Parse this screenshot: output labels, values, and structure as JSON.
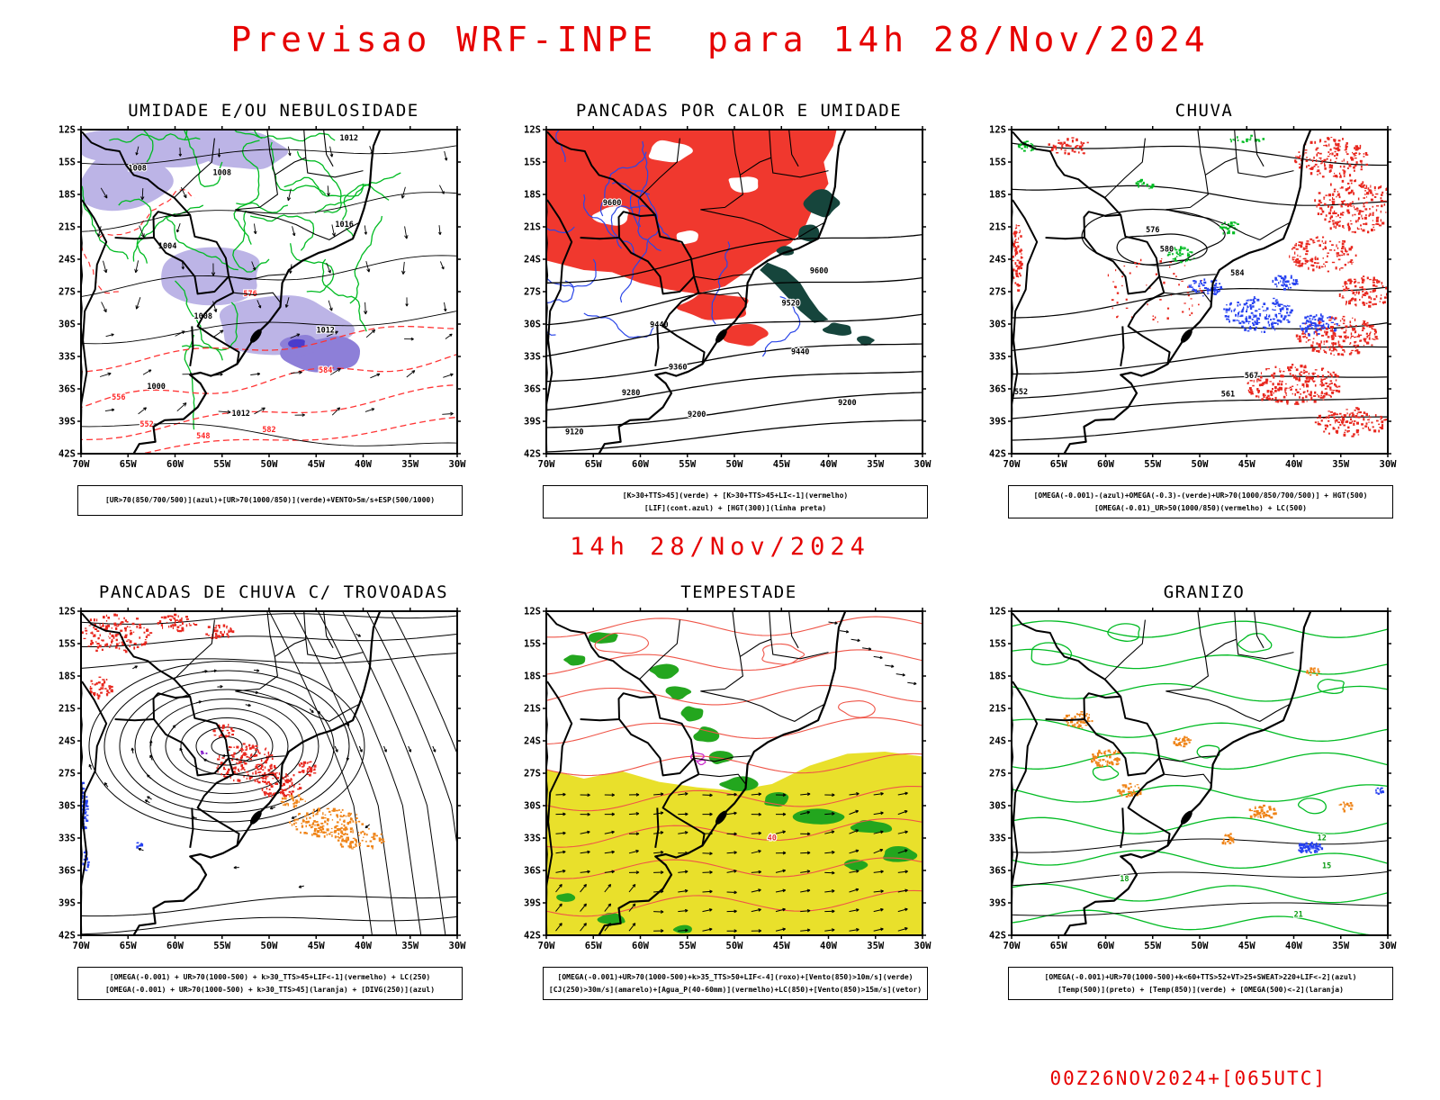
{
  "title": "Previsao WRF-INPE  para 14h 28/Nov/2024",
  "mid_caption": "14h 28/Nov/2024",
  "footer": "00Z26NOV2024+[065UTC]",
  "colors": {
    "accent_red": "#e60000",
    "lavender_fill": "#bcb4e6",
    "lavender_mid": "#8d7fd8",
    "lavender_deep": "#4a3ccc",
    "red_fill": "#f0382e",
    "red_speckle": "#e8271e",
    "teal_fill": "#16453c",
    "yellow_fill": "#e9e02b",
    "green_fill": "#23a61e",
    "green_contour": "#00bb22",
    "blue_contour": "#2b46e8",
    "blue_speckle": "#2742f0",
    "orange_speckle": "#ef8418",
    "magenta_contour": "#cc2bcc",
    "red_contour": "#ef5548",
    "purple_speckle": "#8822cc"
  },
  "axes": {
    "lat_ticks": [
      "12S",
      "15S",
      "18S",
      "21S",
      "24S",
      "27S",
      "30S",
      "33S",
      "36S",
      "39S",
      "42S"
    ],
    "lon_ticks": [
      "70W",
      "65W",
      "60W",
      "55W",
      "50W",
      "45W",
      "40W",
      "35W",
      "30W"
    ]
  },
  "panels": [
    {
      "id": "umidade",
      "title": "UMIDADE E/OU NEBULOSIDADE",
      "legend_lines": [
        "[UR>70(850/700/500)](azul)+[UR>70(1000/850)](verde)+VENTO>5m/s+ESP(500/1000)"
      ],
      "map_labels": {
        "black": [
          "1008",
          "1012",
          "1016",
          "1004",
          "1000"
        ],
        "red": [
          "576",
          "584",
          "582",
          "556",
          "552",
          "548"
        ]
      }
    },
    {
      "id": "pancadas-calor",
      "title": "PANCADAS POR CALOR E UMIDADE",
      "legend_lines": [
        "[K>30+TTS>45](verde) + [K>30+TTS>45+LI<-1](vermelho)",
        "[LIF](cont.azul) + [HGT(300)](linha preta)"
      ],
      "map_labels": {
        "black": [
          "9600",
          "9520",
          "9440",
          "9360",
          "9280",
          "9200",
          "9120"
        ]
      }
    },
    {
      "id": "chuva",
      "title": "CHUVA",
      "legend_lines": [
        "[OMEGA(-0.001)-(azul)+OMEGA(-0.3)-(verde)+UR>70(1000/850/700/500)] + HGT(500)",
        "[OMEGA(-0.01)_UR>50(1000/850)(vermelho) + LC(500)"
      ],
      "map_labels": {
        "black": [
          "576",
          "580",
          "584",
          "567",
          "561",
          "552"
        ]
      }
    },
    {
      "id": "trovoadas",
      "title": "PANCADAS DE CHUVA C/ TROVOADAS",
      "legend_lines": [
        "[OMEGA(-0.001) + UR>70(1000-500) + k>30_TTS>45+LIF<-1](vermelho) + LC(250)",
        "[OMEGA(-0.001) + UR>70(1000-500) + k>30_TTS>45](laranja) + [DIVG(250)](azul)"
      ]
    },
    {
      "id": "tempestade",
      "title": "TEMPESTADE",
      "legend_lines": [
        "[OMEGA(-0.001)+UR>70(1000-500)+k>35_TTS>50+LIF<-4](roxo)+[Vento(850)>10m/s](verde)",
        "[CJ(250)>30m/s](amarelo)+[Agua_P(40-60mm)](vermelho)+LC(850)+[Vento(850)>15m/s](vetor)"
      ],
      "map_labels": {
        "red": [
          "40"
        ]
      }
    },
    {
      "id": "granizo",
      "title": "GRANIZO",
      "legend_lines": [
        "[OMEGA(-0.001)+UR>70(1000-500)+k<60+TTS>52+VT>25+SWEAT>220+LIF<-2](azul)",
        "[Temp(500)](preto) + [Temp(850)](verde) + [OMEGA(500)<-2](laranja)"
      ],
      "map_labels": {
        "green": [
          "12",
          "15",
          "18",
          "21"
        ]
      }
    }
  ]
}
